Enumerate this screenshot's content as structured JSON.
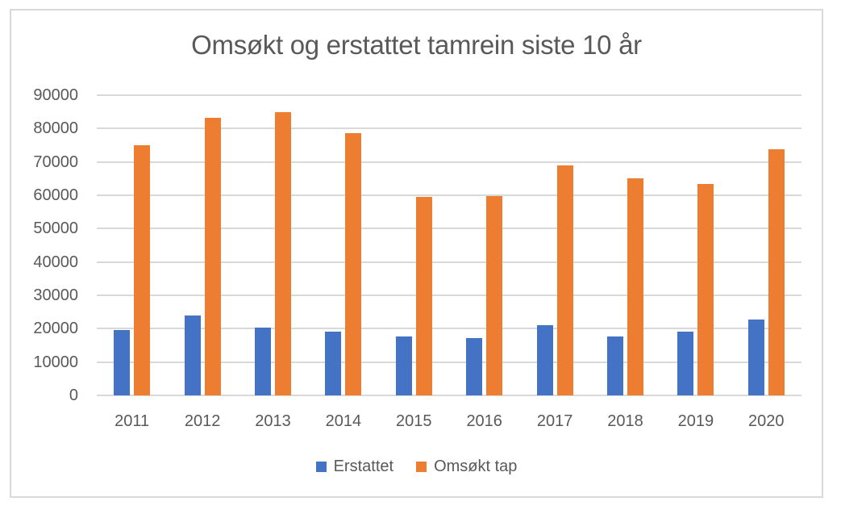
{
  "chart_data": {
    "type": "bar",
    "title": "Omsøkt og erstattet tamrein siste 10 år",
    "categories": [
      "2011",
      "2012",
      "2013",
      "2014",
      "2015",
      "2016",
      "2017",
      "2018",
      "2019",
      "2020"
    ],
    "series": [
      {
        "name": "Erstattet",
        "color": "#4472C4",
        "values": [
          19700,
          24000,
          20300,
          19200,
          17700,
          17200,
          21000,
          17700,
          19200,
          22800
        ]
      },
      {
        "name": "Omsøkt tap",
        "color": "#ED7D31",
        "values": [
          75000,
          83200,
          85000,
          78700,
          59400,
          59700,
          69000,
          65000,
          63400,
          73900
        ]
      }
    ],
    "xlabel": "",
    "ylabel": "",
    "ylim": [
      0,
      90000
    ],
    "yticks": [
      "0",
      "10000",
      "20000",
      "30000",
      "40000",
      "50000",
      "60000",
      "70000",
      "80000",
      "90000"
    ],
    "grid": true,
    "legend_position": "bottom",
    "colors": {
      "gridline": "#D9D9D9",
      "border": "#D9D9D9",
      "axis_text": "#595959",
      "title_text": "#595959"
    }
  }
}
